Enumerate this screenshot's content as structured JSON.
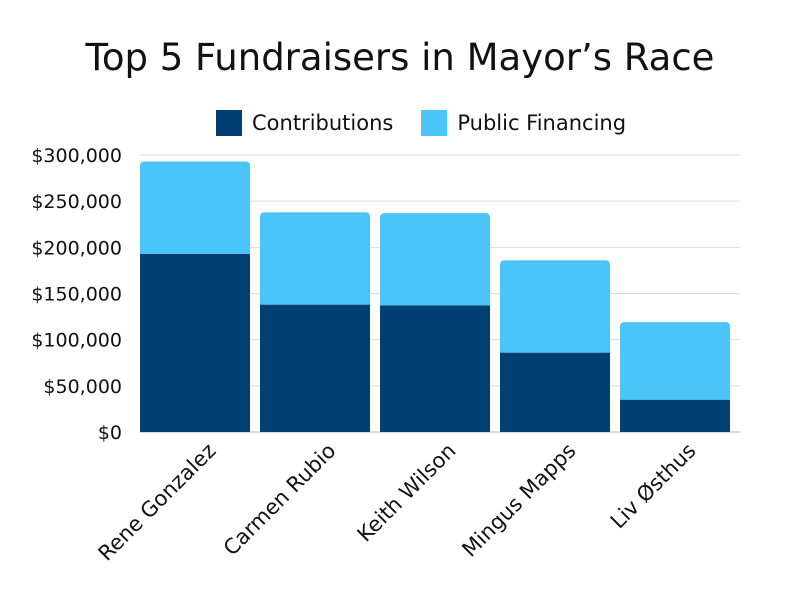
{
  "chart_data": {
    "type": "bar",
    "stacked": true,
    "title": "Top 5 Fundraisers in Mayor’s Race",
    "categories": [
      "Rene Gonzalez",
      "Carmen Rubio",
      "Keith Wilson",
      "Mingus Mapps",
      "Liv Østhus"
    ],
    "series": [
      {
        "name": "Contributions",
        "color": "#003f72",
        "values": [
          193000,
          138000,
          137000,
          86000,
          35000
        ]
      },
      {
        "name": "Public Financing",
        "color": "#4bc4f7",
        "values": [
          100000,
          100000,
          100000,
          100000,
          84000
        ]
      }
    ],
    "y_ticks": [
      "$300,000",
      "$250,000",
      "$200,000",
      "$150,000",
      "$100,000",
      "$50,000",
      "$0"
    ],
    "y_tick_values": [
      300000,
      250000,
      200000,
      150000,
      100000,
      50000,
      0
    ],
    "ylim": [
      0,
      300000
    ],
    "grid": true,
    "legend_position": "top"
  }
}
